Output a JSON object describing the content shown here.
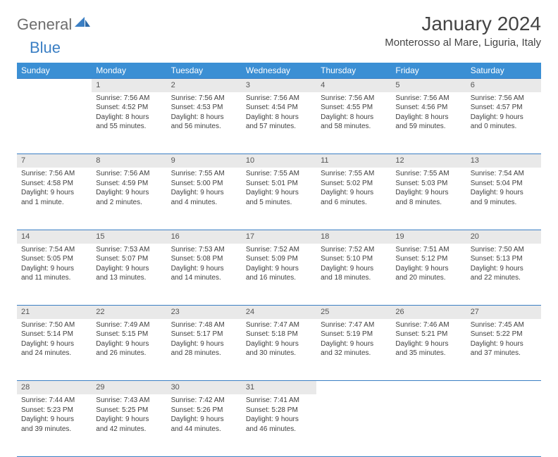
{
  "logo": {
    "part1": "General",
    "part2": "Blue"
  },
  "title": "January 2024",
  "location": "Monterosso al Mare, Liguria, Italy",
  "dayHeaders": [
    "Sunday",
    "Monday",
    "Tuesday",
    "Wednesday",
    "Thursday",
    "Friday",
    "Saturday"
  ],
  "colors": {
    "headerBg": "#3b8fd4",
    "accent": "#3b7fc4",
    "dayStrip": "#e9e9e9",
    "text": "#404040"
  },
  "weeks": [
    [
      null,
      {
        "n": "1",
        "sr": "Sunrise: 7:56 AM",
        "ss": "Sunset: 4:52 PM",
        "d1": "Daylight: 8 hours",
        "d2": "and 55 minutes."
      },
      {
        "n": "2",
        "sr": "Sunrise: 7:56 AM",
        "ss": "Sunset: 4:53 PM",
        "d1": "Daylight: 8 hours",
        "d2": "and 56 minutes."
      },
      {
        "n": "3",
        "sr": "Sunrise: 7:56 AM",
        "ss": "Sunset: 4:54 PM",
        "d1": "Daylight: 8 hours",
        "d2": "and 57 minutes."
      },
      {
        "n": "4",
        "sr": "Sunrise: 7:56 AM",
        "ss": "Sunset: 4:55 PM",
        "d1": "Daylight: 8 hours",
        "d2": "and 58 minutes."
      },
      {
        "n": "5",
        "sr": "Sunrise: 7:56 AM",
        "ss": "Sunset: 4:56 PM",
        "d1": "Daylight: 8 hours",
        "d2": "and 59 minutes."
      },
      {
        "n": "6",
        "sr": "Sunrise: 7:56 AM",
        "ss": "Sunset: 4:57 PM",
        "d1": "Daylight: 9 hours",
        "d2": "and 0 minutes."
      }
    ],
    [
      {
        "n": "7",
        "sr": "Sunrise: 7:56 AM",
        "ss": "Sunset: 4:58 PM",
        "d1": "Daylight: 9 hours",
        "d2": "and 1 minute."
      },
      {
        "n": "8",
        "sr": "Sunrise: 7:56 AM",
        "ss": "Sunset: 4:59 PM",
        "d1": "Daylight: 9 hours",
        "d2": "and 2 minutes."
      },
      {
        "n": "9",
        "sr": "Sunrise: 7:55 AM",
        "ss": "Sunset: 5:00 PM",
        "d1": "Daylight: 9 hours",
        "d2": "and 4 minutes."
      },
      {
        "n": "10",
        "sr": "Sunrise: 7:55 AM",
        "ss": "Sunset: 5:01 PM",
        "d1": "Daylight: 9 hours",
        "d2": "and 5 minutes."
      },
      {
        "n": "11",
        "sr": "Sunrise: 7:55 AM",
        "ss": "Sunset: 5:02 PM",
        "d1": "Daylight: 9 hours",
        "d2": "and 6 minutes."
      },
      {
        "n": "12",
        "sr": "Sunrise: 7:55 AM",
        "ss": "Sunset: 5:03 PM",
        "d1": "Daylight: 9 hours",
        "d2": "and 8 minutes."
      },
      {
        "n": "13",
        "sr": "Sunrise: 7:54 AM",
        "ss": "Sunset: 5:04 PM",
        "d1": "Daylight: 9 hours",
        "d2": "and 9 minutes."
      }
    ],
    [
      {
        "n": "14",
        "sr": "Sunrise: 7:54 AM",
        "ss": "Sunset: 5:05 PM",
        "d1": "Daylight: 9 hours",
        "d2": "and 11 minutes."
      },
      {
        "n": "15",
        "sr": "Sunrise: 7:53 AM",
        "ss": "Sunset: 5:07 PM",
        "d1": "Daylight: 9 hours",
        "d2": "and 13 minutes."
      },
      {
        "n": "16",
        "sr": "Sunrise: 7:53 AM",
        "ss": "Sunset: 5:08 PM",
        "d1": "Daylight: 9 hours",
        "d2": "and 14 minutes."
      },
      {
        "n": "17",
        "sr": "Sunrise: 7:52 AM",
        "ss": "Sunset: 5:09 PM",
        "d1": "Daylight: 9 hours",
        "d2": "and 16 minutes."
      },
      {
        "n": "18",
        "sr": "Sunrise: 7:52 AM",
        "ss": "Sunset: 5:10 PM",
        "d1": "Daylight: 9 hours",
        "d2": "and 18 minutes."
      },
      {
        "n": "19",
        "sr": "Sunrise: 7:51 AM",
        "ss": "Sunset: 5:12 PM",
        "d1": "Daylight: 9 hours",
        "d2": "and 20 minutes."
      },
      {
        "n": "20",
        "sr": "Sunrise: 7:50 AM",
        "ss": "Sunset: 5:13 PM",
        "d1": "Daylight: 9 hours",
        "d2": "and 22 minutes."
      }
    ],
    [
      {
        "n": "21",
        "sr": "Sunrise: 7:50 AM",
        "ss": "Sunset: 5:14 PM",
        "d1": "Daylight: 9 hours",
        "d2": "and 24 minutes."
      },
      {
        "n": "22",
        "sr": "Sunrise: 7:49 AM",
        "ss": "Sunset: 5:15 PM",
        "d1": "Daylight: 9 hours",
        "d2": "and 26 minutes."
      },
      {
        "n": "23",
        "sr": "Sunrise: 7:48 AM",
        "ss": "Sunset: 5:17 PM",
        "d1": "Daylight: 9 hours",
        "d2": "and 28 minutes."
      },
      {
        "n": "24",
        "sr": "Sunrise: 7:47 AM",
        "ss": "Sunset: 5:18 PM",
        "d1": "Daylight: 9 hours",
        "d2": "and 30 minutes."
      },
      {
        "n": "25",
        "sr": "Sunrise: 7:47 AM",
        "ss": "Sunset: 5:19 PM",
        "d1": "Daylight: 9 hours",
        "d2": "and 32 minutes."
      },
      {
        "n": "26",
        "sr": "Sunrise: 7:46 AM",
        "ss": "Sunset: 5:21 PM",
        "d1": "Daylight: 9 hours",
        "d2": "and 35 minutes."
      },
      {
        "n": "27",
        "sr": "Sunrise: 7:45 AM",
        "ss": "Sunset: 5:22 PM",
        "d1": "Daylight: 9 hours",
        "d2": "and 37 minutes."
      }
    ],
    [
      {
        "n": "28",
        "sr": "Sunrise: 7:44 AM",
        "ss": "Sunset: 5:23 PM",
        "d1": "Daylight: 9 hours",
        "d2": "and 39 minutes."
      },
      {
        "n": "29",
        "sr": "Sunrise: 7:43 AM",
        "ss": "Sunset: 5:25 PM",
        "d1": "Daylight: 9 hours",
        "d2": "and 42 minutes."
      },
      {
        "n": "30",
        "sr": "Sunrise: 7:42 AM",
        "ss": "Sunset: 5:26 PM",
        "d1": "Daylight: 9 hours",
        "d2": "and 44 minutes."
      },
      {
        "n": "31",
        "sr": "Sunrise: 7:41 AM",
        "ss": "Sunset: 5:28 PM",
        "d1": "Daylight: 9 hours",
        "d2": "and 46 minutes."
      },
      null,
      null,
      null
    ]
  ]
}
